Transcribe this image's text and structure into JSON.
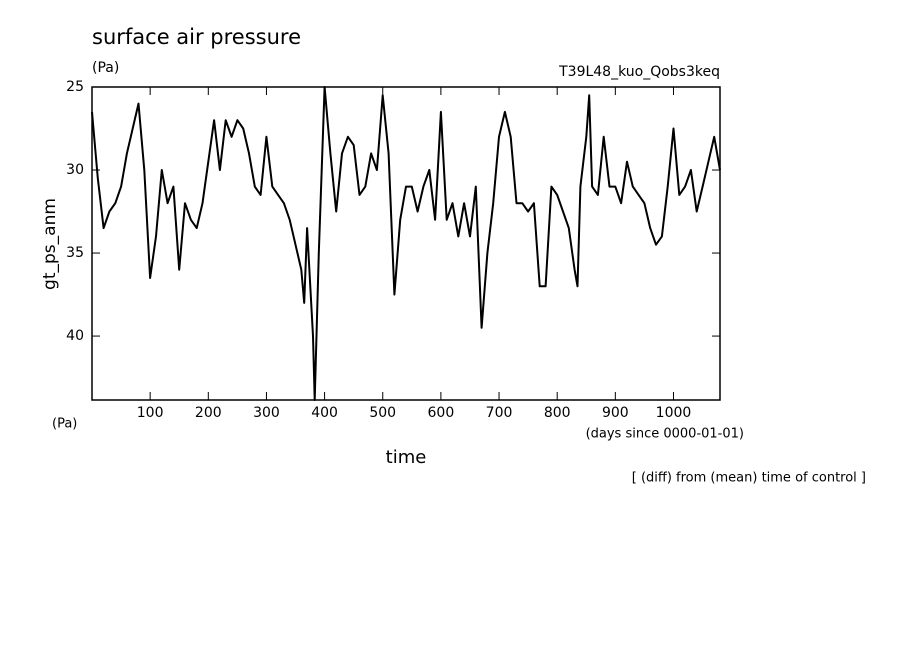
{
  "chart_data": {
    "type": "line",
    "title": "surface air pressure",
    "units": "(Pa)",
    "run_label": "T39L48_kuo_Qobs3keq",
    "ylabel": "gt_ps_anm",
    "yunits": "(Pa)",
    "xunits": "(days since 0000-01-01)",
    "xlabel": "time",
    "note": "[ (diff) from (mean) time of control ]",
    "color": "#000000",
    "y_inverted": true,
    "xlim": [
      0,
      1080
    ],
    "ylim": [
      25,
      43.85
    ],
    "xticks": [
      100,
      200,
      300,
      400,
      500,
      600,
      700,
      800,
      900,
      1000
    ],
    "yticks": [
      25,
      30,
      35,
      40
    ],
    "x": [
      0,
      10,
      20,
      30,
      40,
      50,
      60,
      70,
      80,
      90,
      100,
      110,
      120,
      130,
      140,
      150,
      160,
      170,
      180,
      190,
      200,
      210,
      220,
      230,
      240,
      250,
      260,
      270,
      280,
      290,
      300,
      310,
      320,
      330,
      340,
      350,
      360,
      365,
      370,
      380,
      383,
      390,
      400,
      410,
      420,
      430,
      440,
      450,
      460,
      470,
      480,
      490,
      500,
      510,
      520,
      530,
      540,
      550,
      560,
      570,
      580,
      590,
      600,
      610,
      620,
      630,
      640,
      650,
      660,
      670,
      680,
      690,
      700,
      710,
      720,
      730,
      740,
      750,
      760,
      770,
      780,
      790,
      800,
      810,
      820,
      830,
      835,
      840,
      850,
      855,
      860,
      870,
      880,
      890,
      900,
      910,
      920,
      930,
      940,
      950,
      960,
      970,
      980,
      990,
      1000,
      1010,
      1020,
      1030,
      1040,
      1050,
      1060,
      1070,
      1080
    ],
    "values": [
      26.5,
      30.5,
      33.5,
      32.5,
      32,
      31,
      29,
      27.5,
      26,
      30,
      36.5,
      34,
      30,
      32,
      31,
      36,
      32,
      33,
      33.5,
      32,
      29.5,
      27,
      30,
      27,
      28,
      27,
      27.5,
      29,
      31,
      31.5,
      28,
      31,
      31.5,
      32,
      33,
      34.5,
      36,
      38,
      33.5,
      40,
      43.85,
      35,
      25,
      29,
      32.5,
      29,
      28,
      28.5,
      31.5,
      31,
      29,
      30,
      25.5,
      29,
      37.5,
      33,
      31,
      31,
      32.5,
      31,
      30,
      33,
      26.5,
      33,
      32,
      34,
      32,
      34,
      31,
      39.5,
      35,
      32,
      28,
      26.5,
      28,
      32,
      32,
      32.5,
      32,
      37,
      37,
      31,
      31.5,
      32.5,
      33.5,
      36,
      37,
      31,
      28,
      25.5,
      31,
      31.5,
      28,
      31,
      31,
      32,
      29.5,
      31,
      31.5,
      32,
      33.5,
      34.5,
      34,
      31,
      27.5,
      31.5,
      31,
      30,
      32.5,
      31,
      29.5,
      28,
      30
    ]
  }
}
